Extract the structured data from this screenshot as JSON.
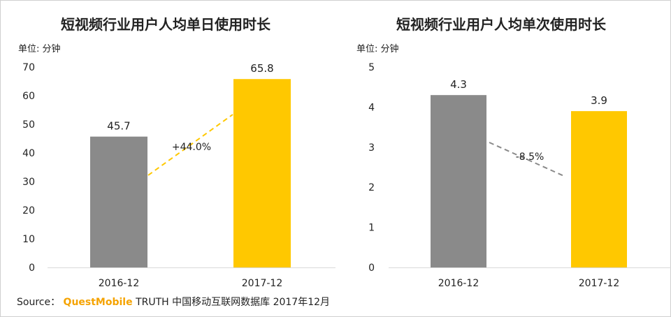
{
  "chart_data": [
    {
      "type": "bar",
      "title": "短视频行业用户人均单日使用时长",
      "unit_label": "单位: 分钟",
      "categories": [
        "2016-12",
        "2017-12"
      ],
      "values": [
        45.7,
        65.8
      ],
      "value_labels": [
        "45.7",
        "65.8"
      ],
      "ylim": [
        0,
        70
      ],
      "yticks": [
        0,
        10,
        20,
        30,
        40,
        50,
        60,
        70
      ],
      "ytick_labels": [
        "0",
        "10",
        "20",
        "30",
        "40",
        "50",
        "60",
        "70"
      ],
      "bar_colors": [
        "#8a8a8a",
        "#ffc800"
      ],
      "change_label": "+44.0%",
      "change_color": "#ffc800",
      "xlabel": "",
      "ylabel": ""
    },
    {
      "type": "bar",
      "title": "短视频行业用户人均单次使用时长",
      "unit_label": "单位: 分钟",
      "categories": [
        "2016-12",
        "2017-12"
      ],
      "values": [
        4.3,
        3.9
      ],
      "value_labels": [
        "4.3",
        "3.9"
      ],
      "ylim": [
        0,
        5
      ],
      "yticks": [
        0,
        1,
        2,
        3,
        4,
        5
      ],
      "ytick_labels": [
        "0",
        "1",
        "2",
        "3",
        "4",
        "5"
      ],
      "bar_colors": [
        "#8a8a8a",
        "#ffc800"
      ],
      "change_label": "-8.5%",
      "change_color": "#8a8a8a",
      "xlabel": "",
      "ylabel": ""
    }
  ],
  "footer": {
    "prefix": "Source：",
    "brand": "QuestMobile",
    "suffix": "TRUTH 中国移动互联网数据库 2017年12月"
  }
}
